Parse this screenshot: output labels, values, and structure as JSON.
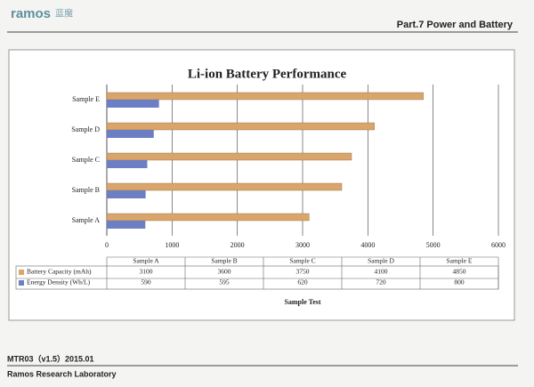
{
  "header": {
    "brand": "ramos",
    "brand_cn": "蓝魔",
    "section": "Part.7 Power and Battery"
  },
  "footer": {
    "doc_id": "MTR03（v1.5）2015.01",
    "lab": "Ramos Research Laboratory"
  },
  "chart_data": {
    "type": "bar",
    "orientation": "horizontal",
    "title": "Li-ion Battery Performance",
    "x_label": "Sample Test",
    "categories": [
      "Sample A",
      "Sample B",
      "Sample C",
      "Sample D",
      "Sample E"
    ],
    "series": [
      {
        "name": "Battery Capacity (mAh)",
        "color": "#d9a56b",
        "values": [
          3100,
          3600,
          3750,
          4100,
          4850
        ]
      },
      {
        "name": "Energy Density (Wh/L)",
        "color": "#6d7fc4",
        "values": [
          590,
          595,
          620,
          720,
          800
        ]
      }
    ],
    "xlim": [
      0,
      6000
    ],
    "xticks": [
      0,
      1000,
      2000,
      3000,
      4000,
      5000,
      6000
    ],
    "grid": true
  }
}
